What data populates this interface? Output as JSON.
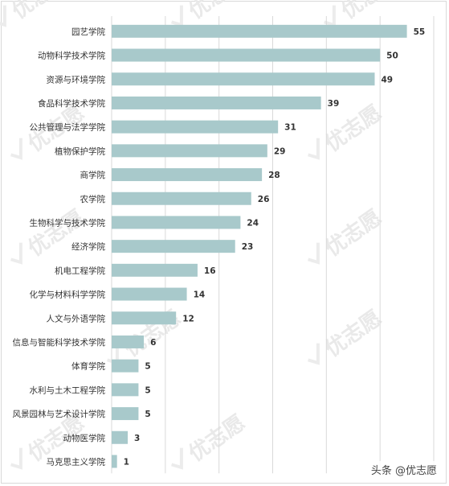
{
  "chart_data": {
    "type": "bar",
    "orientation": "horizontal",
    "categories": [
      "园艺学院",
      "动物科学技术学院",
      "资源与环境学院",
      "食品科学技术学院",
      "公共管理与法学学院",
      "植物保护学院",
      "商学院",
      "农学院",
      "生物科学与技术学院",
      "经济学院",
      "机电工程学院",
      "化学与材料科学学院",
      "人文与外语学院",
      "信息与智能科学技术学院",
      "体育学院",
      "水利与土木工程学院",
      "风景园林与艺术设计学院",
      "动物医学院",
      "马克思主义学院"
    ],
    "values": [
      55,
      50,
      49,
      39,
      31,
      29,
      28,
      26,
      24,
      23,
      16,
      14,
      12,
      6,
      5,
      5,
      5,
      3,
      1
    ],
    "xlim": [
      0,
      60
    ],
    "grid": true,
    "bar_color": "#a8c9cb",
    "grid_color": "#d9d9d9"
  },
  "watermark": {
    "text": "优志愿",
    "color": "#e9e9e9"
  },
  "footer": {
    "text": "头条 @优志愿"
  }
}
